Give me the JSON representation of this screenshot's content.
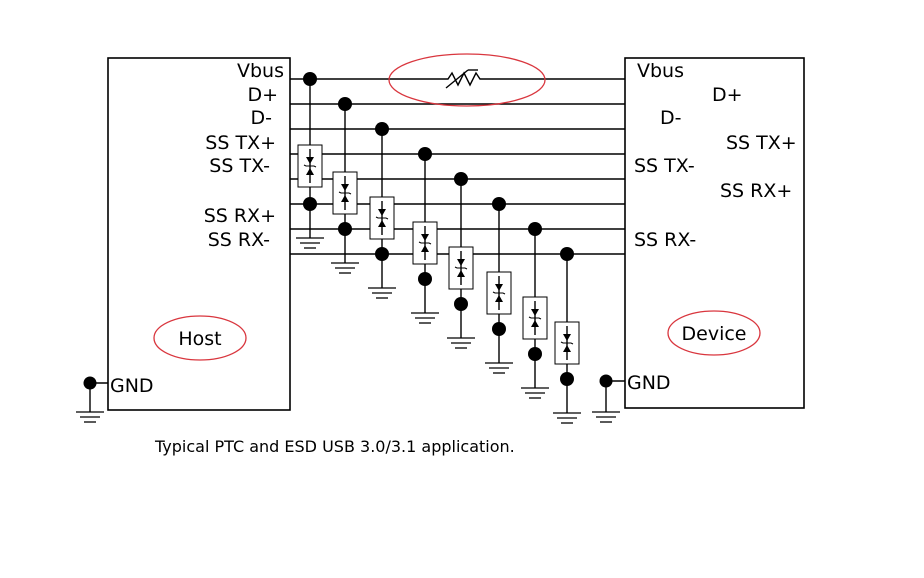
{
  "host": {
    "title": "Host",
    "pins": [
      "Vbus",
      "D+",
      "D-",
      "SS TX+",
      "SS TX-",
      "SS RX+",
      "SS RX-"
    ],
    "gnd": "GND"
  },
  "device": {
    "title": "Device",
    "pins": [
      "Vbus",
      "D+",
      "D-",
      "SS TX+",
      "SS TX-",
      "SS RX+",
      "SS RX-"
    ],
    "gnd": "GND"
  },
  "caption": "Typical PTC and ESD USB 3.0/3.1 application.",
  "colors": {
    "highlight": "#d9363e",
    "ink": "#000000"
  },
  "components": {
    "ptc": "ptc-resistor-icon",
    "esd": "tvs-diode-icon",
    "ground": "ground-icon"
  }
}
